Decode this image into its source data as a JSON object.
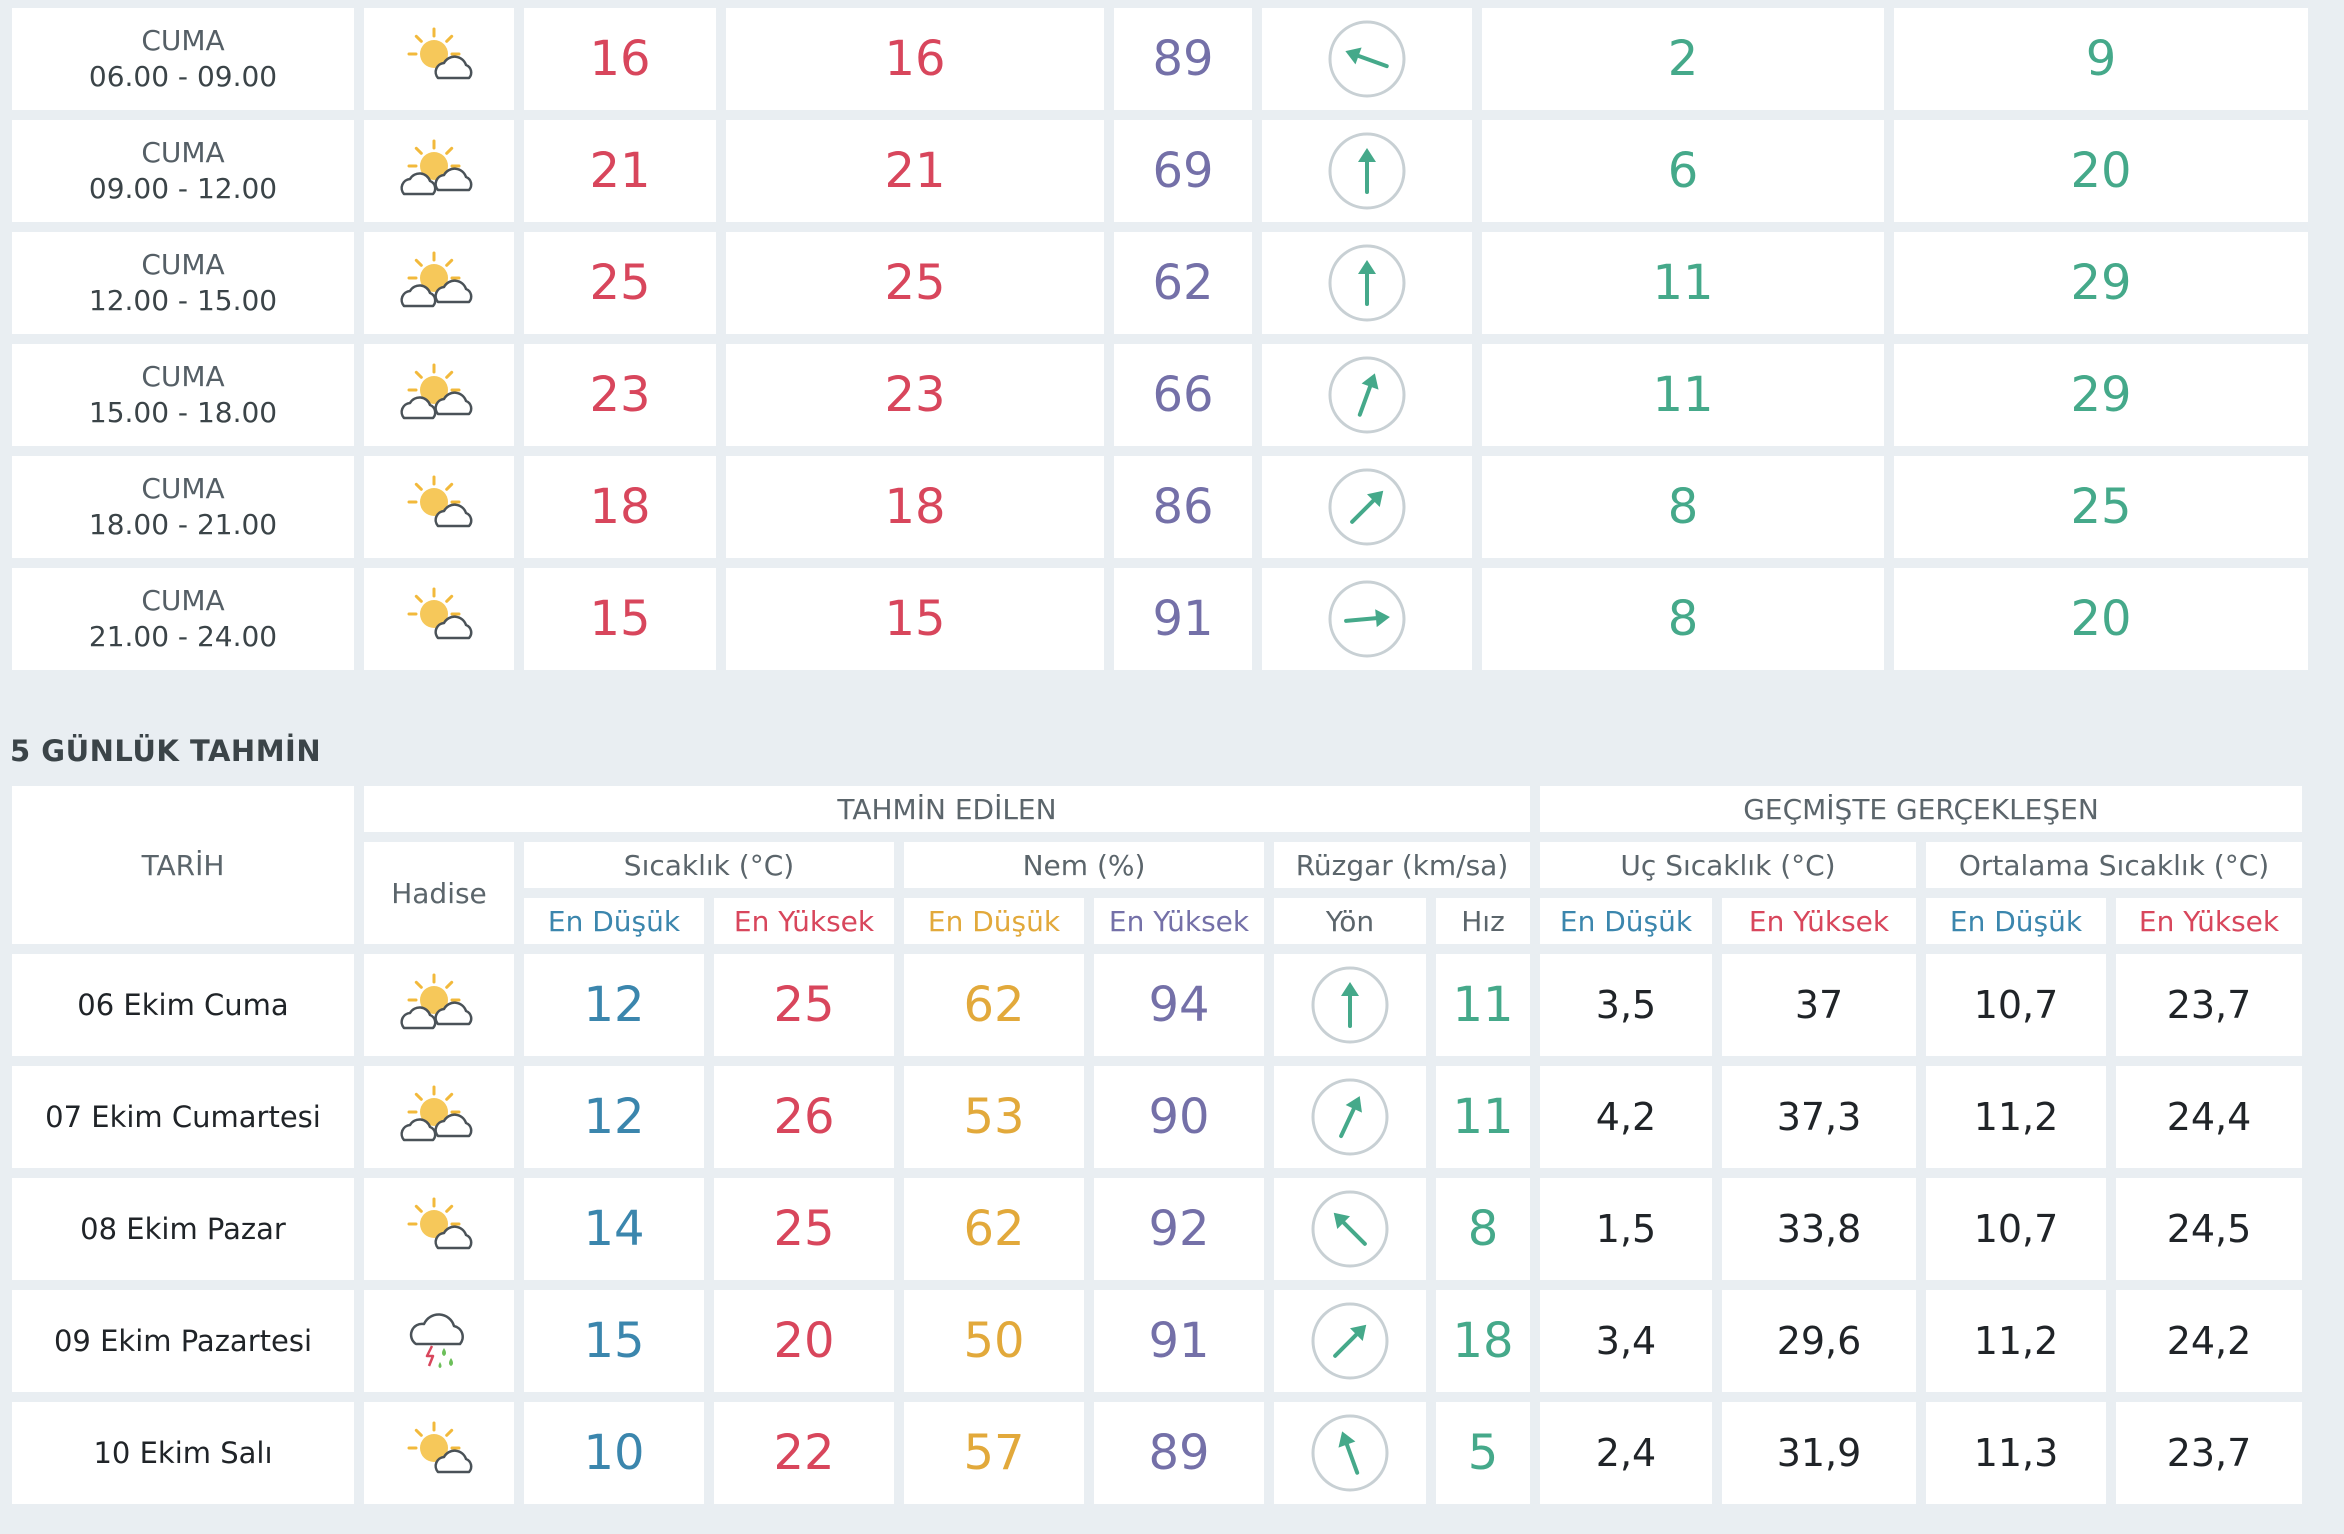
{
  "hourly": [
    {
      "day": "CUMA",
      "time": "06.00 - 09.00",
      "icon": "partly-cloudy-icon",
      "temp": "16",
      "feels": "16",
      "humidity": "89",
      "wind_deg": 110,
      "wind_speed": "2",
      "gust": "9"
    },
    {
      "day": "CUMA",
      "time": "09.00 - 12.00",
      "icon": "sun-clouds-icon",
      "temp": "21",
      "feels": "21",
      "humidity": "69",
      "wind_deg": 180,
      "wind_speed": "6",
      "gust": "20"
    },
    {
      "day": "CUMA",
      "time": "12.00 - 15.00",
      "icon": "sun-clouds-icon",
      "temp": "25",
      "feels": "25",
      "humidity": "62",
      "wind_deg": 180,
      "wind_speed": "11",
      "gust": "29"
    },
    {
      "day": "CUMA",
      "time": "15.00 - 18.00",
      "icon": "sun-clouds-icon",
      "temp": "23",
      "feels": "23",
      "humidity": "66",
      "wind_deg": 200,
      "wind_speed": "11",
      "gust": "29"
    },
    {
      "day": "CUMA",
      "time": "18.00 - 21.00",
      "icon": "partly-cloudy-icon",
      "temp": "18",
      "feels": "18",
      "humidity": "86",
      "wind_deg": 225,
      "wind_speed": "8",
      "gust": "25"
    },
    {
      "day": "CUMA",
      "time": "21.00 - 24.00",
      "icon": "partly-cloudy-icon",
      "temp": "15",
      "feels": "15",
      "humidity": "91",
      "wind_deg": 265,
      "wind_speed": "8",
      "gust": "20"
    }
  ],
  "section_title": "5 GÜNLÜK TAHMİN",
  "headers": {
    "tarih": "TARİH",
    "tahmin": "TAHMİN EDİLEN",
    "gecmis": "GEÇMİŞTE GERÇEKLEŞEN",
    "hadise": "Hadise",
    "sicaklik": "Sıcaklık (°C)",
    "nem": "Nem (%)",
    "ruzgar": "Rüzgar (km/sa)",
    "uc": "Uç Sıcaklık (°C)",
    "ortalama": "Ortalama Sıcaklık (°C)",
    "en_dusuk": "En Düşük",
    "en_yuksek": "En Yüksek",
    "yon": "Yön",
    "hiz": "Hız"
  },
  "daily": [
    {
      "date": "06 Ekim Cuma",
      "icon": "sun-clouds-icon",
      "tmin": "12",
      "tmax": "25",
      "hmin": "62",
      "hmax": "94",
      "wind_deg": 180,
      "wind_speed": "11",
      "uc_min": "3,5",
      "uc_max": "37",
      "ort_min": "10,7",
      "ort_max": "23,7"
    },
    {
      "date": "07 Ekim Cumartesi",
      "icon": "sun-clouds-icon",
      "tmin": "12",
      "tmax": "26",
      "hmin": "53",
      "hmax": "90",
      "wind_deg": 205,
      "wind_speed": "11",
      "uc_min": "4,2",
      "uc_max": "37,3",
      "ort_min": "11,2",
      "ort_max": "24,4"
    },
    {
      "date": "08 Ekim Pazar",
      "icon": "partly-cloudy-icon",
      "tmin": "14",
      "tmax": "25",
      "hmin": "62",
      "hmax": "92",
      "wind_deg": 135,
      "wind_speed": "8",
      "uc_min": "1,5",
      "uc_max": "33,8",
      "ort_min": "10,7",
      "ort_max": "24,5"
    },
    {
      "date": "09 Ekim Pazartesi",
      "icon": "thunderstorm-icon",
      "tmin": "15",
      "tmax": "20",
      "hmin": "50",
      "hmax": "91",
      "wind_deg": 225,
      "wind_speed": "18",
      "uc_min": "3,4",
      "uc_max": "29,6",
      "ort_min": "11,2",
      "ort_max": "24,2"
    },
    {
      "date": "10 Ekim Salı",
      "icon": "partly-cloudy-icon",
      "tmin": "10",
      "tmax": "22",
      "hmin": "57",
      "hmax": "89",
      "wind_deg": 160,
      "wind_speed": "5",
      "uc_min": "2,4",
      "uc_max": "31,9",
      "ort_min": "11,3",
      "ort_max": "23,7"
    }
  ],
  "colors": {
    "temp": "#d8465c",
    "humidity": "#7470a8",
    "wind": "#45a98a",
    "min": "#3b86ad",
    "nem_min": "#e2a93b"
  }
}
